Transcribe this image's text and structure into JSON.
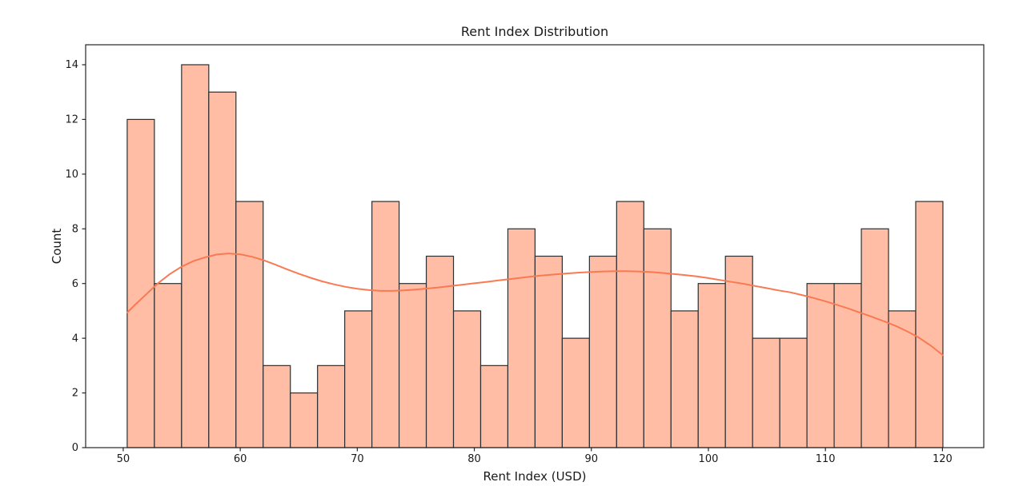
{
  "chart_data": {
    "type": "bar",
    "subtype": "histogram-with-kde",
    "title": "Rent Index Distribution",
    "xlabel": "Rent Index (USD)",
    "ylabel": "Count",
    "bin_start": 50.34,
    "bin_width": 2.3233,
    "counts": [
      12,
      6,
      14,
      13,
      9,
      3,
      2,
      3,
      5,
      9,
      6,
      7,
      5,
      3,
      8,
      7,
      4,
      7,
      9,
      8,
      5,
      6,
      7,
      4,
      4,
      6,
      6,
      8,
      5,
      9
    ],
    "total_observations": 200,
    "kde_line": [
      [
        50.34,
        4.94
      ],
      [
        51,
        5.22
      ],
      [
        52,
        5.62
      ],
      [
        53,
        6.02
      ],
      [
        54,
        6.35
      ],
      [
        55,
        6.62
      ],
      [
        56,
        6.82
      ],
      [
        57,
        6.96
      ],
      [
        58,
        7.06
      ],
      [
        59,
        7.1
      ],
      [
        60,
        7.07
      ],
      [
        61,
        6.98
      ],
      [
        62,
        6.85
      ],
      [
        63,
        6.69
      ],
      [
        64,
        6.52
      ],
      [
        65,
        6.36
      ],
      [
        66,
        6.21
      ],
      [
        67,
        6.08
      ],
      [
        68,
        5.97
      ],
      [
        69,
        5.88
      ],
      [
        70,
        5.81
      ],
      [
        71,
        5.76
      ],
      [
        72,
        5.73
      ],
      [
        73,
        5.73
      ],
      [
        74,
        5.75
      ],
      [
        75,
        5.78
      ],
      [
        76,
        5.82
      ],
      [
        77,
        5.86
      ],
      [
        78,
        5.91
      ],
      [
        79,
        5.96
      ],
      [
        80,
        6.01
      ],
      [
        81,
        6.06
      ],
      [
        82,
        6.11
      ],
      [
        83,
        6.16
      ],
      [
        84,
        6.21
      ],
      [
        85,
        6.26
      ],
      [
        86,
        6.3
      ],
      [
        87,
        6.34
      ],
      [
        88,
        6.37
      ],
      [
        89,
        6.4
      ],
      [
        90,
        6.42
      ],
      [
        91,
        6.44
      ],
      [
        92,
        6.45
      ],
      [
        93,
        6.45
      ],
      [
        94,
        6.44
      ],
      [
        95,
        6.42
      ],
      [
        96,
        6.39
      ],
      [
        97,
        6.35
      ],
      [
        98,
        6.31
      ],
      [
        99,
        6.26
      ],
      [
        100,
        6.2
      ],
      [
        101,
        6.13
      ],
      [
        102,
        6.06
      ],
      [
        103,
        5.99
      ],
      [
        104,
        5.91
      ],
      [
        105,
        5.83
      ],
      [
        106,
        5.75
      ],
      [
        107,
        5.68
      ],
      [
        108,
        5.58
      ],
      [
        109,
        5.47
      ],
      [
        110,
        5.35
      ],
      [
        111,
        5.22
      ],
      [
        112,
        5.08
      ],
      [
        113,
        4.93
      ],
      [
        114,
        4.78
      ],
      [
        115,
        4.62
      ],
      [
        116,
        4.45
      ],
      [
        117,
        4.25
      ],
      [
        118,
        4.02
      ],
      [
        119,
        3.73
      ],
      [
        120.04,
        3.38
      ]
    ],
    "xticks": [
      50,
      60,
      70,
      80,
      90,
      100,
      110,
      120
    ],
    "yticks": [
      0,
      2,
      4,
      6,
      8,
      10,
      12,
      14
    ],
    "xlim": [
      46.79,
      123.53
    ],
    "ylim": [
      0,
      14.73
    ],
    "legend": "none",
    "grid": "off",
    "colors": {
      "bar_fill": "#ffbda6",
      "bar_edge": "#2e2e2e",
      "kde": "#f97a52",
      "spine": "#262626",
      "tick": "#262626",
      "text": "#1a1a1a",
      "background": "#ffffff"
    }
  }
}
